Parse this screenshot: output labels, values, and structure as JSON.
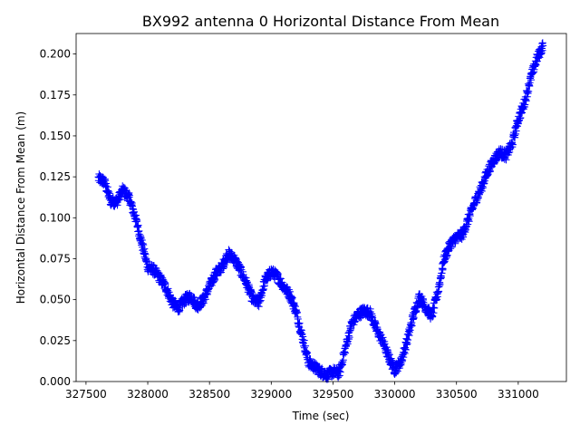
{
  "chart_data": {
    "type": "scatter",
    "title": "BX992 antenna 0 Horizontal Distance From Mean",
    "xlabel": "Time (sec)",
    "ylabel": "Horizontal Distance From Mean (m)",
    "xlim": [
      327420,
      331390
    ],
    "ylim": [
      0.0,
      0.2125
    ],
    "xticks": [
      327500,
      328000,
      328500,
      329000,
      329500,
      330000,
      330500,
      331000
    ],
    "xtick_labels": [
      "327500",
      "328000",
      "328500",
      "329000",
      "329500",
      "330000",
      "330500",
      "331000"
    ],
    "yticks": [
      0.0,
      0.025,
      0.05,
      0.075,
      0.1,
      0.125,
      0.15,
      0.175,
      0.2
    ],
    "ytick_labels": [
      "0.000",
      "0.025",
      "0.050",
      "0.075",
      "0.100",
      "0.125",
      "0.150",
      "0.175",
      "0.200"
    ],
    "grid": false,
    "marker": "+",
    "color": "#0000ff",
    "series": [
      {
        "x": [
          327600,
          327650,
          327700,
          327750,
          327800,
          327850,
          327900,
          327950,
          328000,
          328050,
          328100,
          328150,
          328200,
          328250,
          328300,
          328350,
          328400,
          328450,
          328500,
          328550,
          328600,
          328650,
          328700,
          328750,
          328800,
          328850,
          328900,
          328950,
          329000,
          329050,
          329100,
          329150,
          329200,
          329250,
          329300,
          329350,
          329400,
          329450,
          329500,
          329550,
          329600,
          329650,
          329700,
          329750,
          329800,
          329850,
          329900,
          329950,
          330000,
          330050,
          330100,
          330150,
          330200,
          330250,
          330300,
          330350,
          330400,
          330450,
          330500,
          330550,
          330600,
          330650,
          330700,
          330750,
          330800,
          330850,
          330900,
          330950,
          331000,
          331050,
          331100,
          331150,
          331200
        ],
        "y": [
          0.124,
          0.122,
          0.11,
          0.11,
          0.117,
          0.112,
          0.1,
          0.085,
          0.07,
          0.068,
          0.063,
          0.057,
          0.048,
          0.045,
          0.05,
          0.052,
          0.046,
          0.05,
          0.058,
          0.066,
          0.07,
          0.078,
          0.075,
          0.068,
          0.06,
          0.05,
          0.048,
          0.062,
          0.067,
          0.064,
          0.058,
          0.053,
          0.043,
          0.028,
          0.012,
          0.009,
          0.006,
          0.004,
          0.006,
          0.005,
          0.02,
          0.035,
          0.041,
          0.043,
          0.042,
          0.032,
          0.025,
          0.015,
          0.007,
          0.012,
          0.025,
          0.04,
          0.052,
          0.045,
          0.04,
          0.055,
          0.075,
          0.084,
          0.088,
          0.09,
          0.1,
          0.11,
          0.118,
          0.128,
          0.135,
          0.14,
          0.138,
          0.145,
          0.16,
          0.17,
          0.185,
          0.197,
          0.205
        ]
      }
    ]
  }
}
